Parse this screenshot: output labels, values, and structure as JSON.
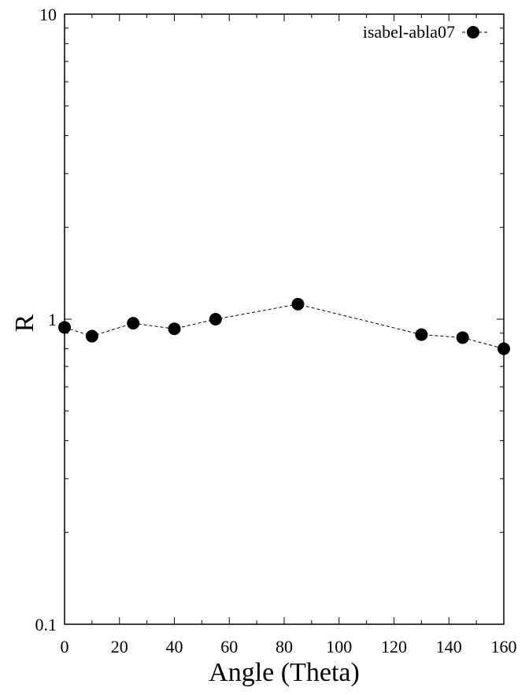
{
  "chart_data": {
    "type": "scatter",
    "xlabel": "Angle (Theta)",
    "ylabel": "R",
    "xlim": [
      0,
      160
    ],
    "ylim": [
      0.1,
      10
    ],
    "yscale": "log",
    "x_ticks": [
      "0",
      "20",
      "40",
      "60",
      "80",
      "100",
      "120",
      "140",
      "160"
    ],
    "y_ticks": [
      "0.1",
      "1",
      "10"
    ],
    "grid": false,
    "legend_position": "top-right",
    "series": [
      {
        "name": "isabel-abla07",
        "line_style": "dashed",
        "marker": "filled-circle",
        "color": "#000000",
        "x": [
          0,
          10,
          25,
          40,
          55,
          85,
          130,
          145,
          160
        ],
        "y": [
          0.94,
          0.88,
          0.97,
          0.93,
          1.0,
          1.12,
          0.89,
          0.87,
          0.8
        ]
      }
    ]
  }
}
